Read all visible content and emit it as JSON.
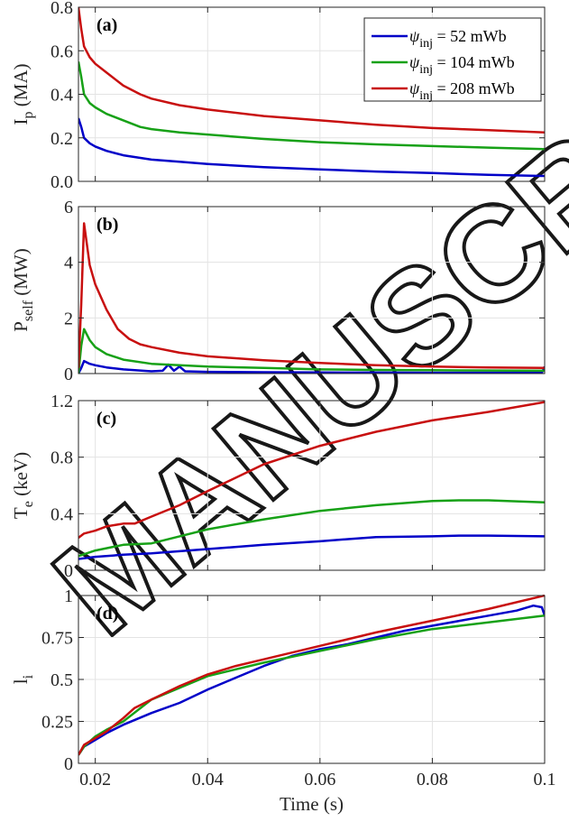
{
  "chart_data": [
    {
      "type": "line",
      "panel_label": "(a)",
      "ylabel": "I",
      "ylabel_sub": "p",
      "ylabel_unit": " (MA)",
      "xlim": [
        0.017,
        0.1
      ],
      "ylim": [
        0,
        0.8
      ],
      "yticks": [
        0,
        0.2,
        0.4,
        0.6,
        0.8
      ],
      "ytick_labels": [
        "0.0",
        "0.2",
        "0.4",
        "0.6",
        "0.8"
      ],
      "grid": true,
      "legend": {
        "placement": "top-right",
        "entries": [
          {
            "prefix": "ψ",
            "sub": "inj",
            "suffix": " = 52 mWb"
          },
          {
            "prefix": "ψ",
            "sub": "inj",
            "suffix": " = 104 mWb"
          },
          {
            "prefix": "ψ",
            "sub": "inj",
            "suffix": " = 208 mWb"
          }
        ]
      },
      "series": [
        {
          "color": "#0000c8",
          "x": [
            0.017,
            0.0175,
            0.018,
            0.019,
            0.02,
            0.022,
            0.025,
            0.03,
            0.035,
            0.04,
            0.05,
            0.06,
            0.07,
            0.08,
            0.09,
            0.0995,
            0.1
          ],
          "y": [
            0.29,
            0.25,
            0.2,
            0.175,
            0.16,
            0.14,
            0.12,
            0.1,
            0.09,
            0.08,
            0.065,
            0.055,
            0.045,
            0.038,
            0.03,
            0.025,
            0.025
          ]
        },
        {
          "color": "#17a117",
          "x": [
            0.017,
            0.0175,
            0.018,
            0.019,
            0.02,
            0.022,
            0.025,
            0.028,
            0.03,
            0.035,
            0.04,
            0.05,
            0.06,
            0.07,
            0.08,
            0.09,
            0.1
          ],
          "y": [
            0.55,
            0.48,
            0.4,
            0.36,
            0.34,
            0.31,
            0.28,
            0.25,
            0.24,
            0.225,
            0.215,
            0.195,
            0.18,
            0.17,
            0.162,
            0.155,
            0.148
          ]
        },
        {
          "color": "#c81010",
          "x": [
            0.017,
            0.0175,
            0.018,
            0.019,
            0.02,
            0.022,
            0.025,
            0.028,
            0.03,
            0.035,
            0.04,
            0.05,
            0.06,
            0.07,
            0.08,
            0.09,
            0.1
          ],
          "y": [
            0.8,
            0.7,
            0.62,
            0.57,
            0.54,
            0.5,
            0.44,
            0.4,
            0.38,
            0.35,
            0.33,
            0.3,
            0.28,
            0.26,
            0.245,
            0.235,
            0.225
          ]
        }
      ]
    },
    {
      "type": "line",
      "panel_label": "(b)",
      "ylabel": "P",
      "ylabel_sub": "self",
      "ylabel_unit": " (MW)",
      "xlim": [
        0.017,
        0.1
      ],
      "ylim": [
        0,
        6
      ],
      "yticks": [
        0,
        2,
        4,
        6
      ],
      "ytick_labels": [
        "0",
        "2",
        "4",
        "6"
      ],
      "grid": true,
      "series": [
        {
          "color": "#0000c8",
          "x": [
            0.017,
            0.0175,
            0.018,
            0.019,
            0.02,
            0.022,
            0.025,
            0.03,
            0.032,
            0.033,
            0.034,
            0.035,
            0.036,
            0.04,
            0.05,
            0.06,
            0.07,
            0.08,
            0.09,
            0.0995,
            0.1
          ],
          "y": [
            0.0,
            0.2,
            0.45,
            0.35,
            0.3,
            0.22,
            0.15,
            0.08,
            0.1,
            0.32,
            0.1,
            0.25,
            0.08,
            0.06,
            0.05,
            0.04,
            0.035,
            0.03,
            0.03,
            0.03,
            0.25
          ]
        },
        {
          "color": "#17a117",
          "x": [
            0.017,
            0.0175,
            0.018,
            0.019,
            0.02,
            0.022,
            0.025,
            0.03,
            0.035,
            0.04,
            0.05,
            0.06,
            0.07,
            0.08,
            0.09,
            0.1
          ],
          "y": [
            0.0,
            1.0,
            1.6,
            1.2,
            0.95,
            0.7,
            0.5,
            0.35,
            0.3,
            0.25,
            0.2,
            0.15,
            0.13,
            0.12,
            0.11,
            0.1
          ]
        },
        {
          "color": "#c81010",
          "x": [
            0.017,
            0.0175,
            0.018,
            0.019,
            0.02,
            0.022,
            0.024,
            0.026,
            0.028,
            0.03,
            0.035,
            0.04,
            0.05,
            0.06,
            0.07,
            0.08,
            0.09,
            0.1
          ],
          "y": [
            0.2,
            2.5,
            5.4,
            3.9,
            3.2,
            2.3,
            1.6,
            1.25,
            1.05,
            0.95,
            0.75,
            0.62,
            0.48,
            0.38,
            0.3,
            0.25,
            0.22,
            0.2
          ]
        }
      ]
    },
    {
      "type": "line",
      "panel_label": "(c)",
      "ylabel": "T",
      "ylabel_sub": "e",
      "ylabel_unit": " (keV)",
      "xlim": [
        0.017,
        0.1
      ],
      "ylim": [
        0,
        1.2
      ],
      "yticks": [
        0,
        0.4,
        0.8,
        1.2
      ],
      "ytick_labels": [
        "0",
        "0.4",
        "0.8",
        "1.2"
      ],
      "grid": true,
      "series": [
        {
          "color": "#0000c8",
          "x": [
            0.017,
            0.02,
            0.025,
            0.03,
            0.04,
            0.05,
            0.06,
            0.065,
            0.07,
            0.08,
            0.085,
            0.09,
            0.1
          ],
          "y": [
            0.08,
            0.095,
            0.11,
            0.12,
            0.15,
            0.18,
            0.205,
            0.22,
            0.235,
            0.24,
            0.245,
            0.245,
            0.24
          ]
        },
        {
          "color": "#17a117",
          "x": [
            0.017,
            0.02,
            0.025,
            0.03,
            0.035,
            0.04,
            0.05,
            0.06,
            0.07,
            0.08,
            0.085,
            0.09,
            0.1
          ],
          "y": [
            0.1,
            0.14,
            0.18,
            0.19,
            0.24,
            0.29,
            0.36,
            0.42,
            0.46,
            0.49,
            0.495,
            0.495,
            0.48
          ]
        },
        {
          "color": "#c81010",
          "x": [
            0.017,
            0.018,
            0.02,
            0.022,
            0.025,
            0.027,
            0.03,
            0.035,
            0.04,
            0.05,
            0.06,
            0.07,
            0.08,
            0.09,
            0.1
          ],
          "y": [
            0.23,
            0.26,
            0.28,
            0.31,
            0.33,
            0.33,
            0.38,
            0.46,
            0.56,
            0.75,
            0.88,
            0.98,
            1.06,
            1.12,
            1.19
          ]
        }
      ]
    },
    {
      "type": "line",
      "panel_label": "(d)",
      "ylabel": "l",
      "ylabel_sub": "i",
      "ylabel_unit": "",
      "xlabel": "Time (s)",
      "xlim": [
        0.017,
        0.1
      ],
      "ylim": [
        0,
        1
      ],
      "yticks": [
        0,
        0.25,
        0.5,
        0.75,
        1
      ],
      "ytick_labels": [
        "0",
        "0.25",
        "0.5",
        "0.75",
        "1"
      ],
      "xticks": [
        0.02,
        0.04,
        0.06,
        0.08,
        0.1
      ],
      "xtick_labels": [
        "0.02",
        "0.04",
        "0.06",
        "0.08",
        "0.1"
      ],
      "grid": true,
      "series": [
        {
          "color": "#0000c8",
          "x": [
            0.017,
            0.018,
            0.02,
            0.022,
            0.025,
            0.03,
            0.035,
            0.04,
            0.045,
            0.05,
            0.055,
            0.06,
            0.065,
            0.07,
            0.075,
            0.08,
            0.085,
            0.09,
            0.095,
            0.098,
            0.0995,
            0.1
          ],
          "y": [
            0.05,
            0.1,
            0.14,
            0.18,
            0.23,
            0.3,
            0.36,
            0.44,
            0.51,
            0.58,
            0.64,
            0.68,
            0.71,
            0.75,
            0.79,
            0.82,
            0.85,
            0.88,
            0.91,
            0.94,
            0.93,
            0.88
          ]
        },
        {
          "color": "#17a117",
          "x": [
            0.017,
            0.018,
            0.02,
            0.022,
            0.025,
            0.03,
            0.035,
            0.04,
            0.05,
            0.06,
            0.07,
            0.08,
            0.09,
            0.1
          ],
          "y": [
            0.05,
            0.1,
            0.16,
            0.2,
            0.25,
            0.38,
            0.45,
            0.52,
            0.6,
            0.67,
            0.74,
            0.8,
            0.84,
            0.88
          ]
        },
        {
          "color": "#c81010",
          "x": [
            0.017,
            0.018,
            0.02,
            0.022,
            0.025,
            0.027,
            0.03,
            0.035,
            0.04,
            0.045,
            0.05,
            0.06,
            0.07,
            0.08,
            0.09,
            0.1
          ],
          "y": [
            0.05,
            0.11,
            0.15,
            0.19,
            0.27,
            0.33,
            0.38,
            0.46,
            0.53,
            0.58,
            0.62,
            0.7,
            0.78,
            0.85,
            0.92,
            1.0
          ]
        }
      ]
    }
  ]
}
